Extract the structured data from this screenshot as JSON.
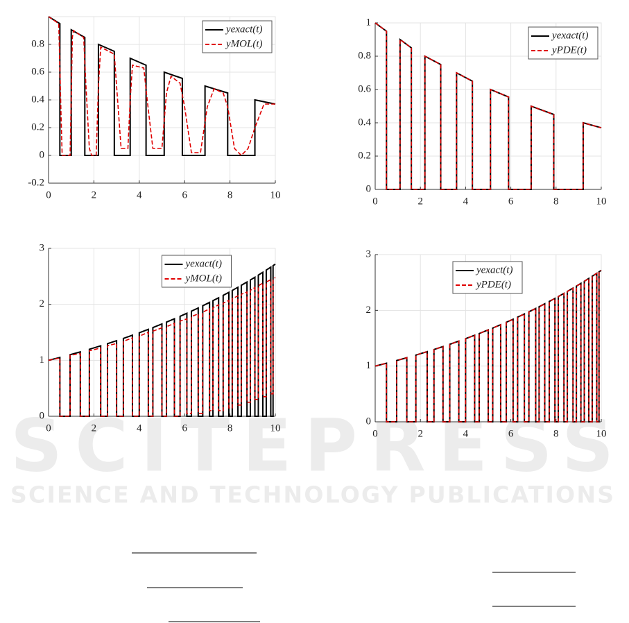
{
  "watermark": {
    "title": "SCITEPRESS",
    "subtitle": "SCIENCE AND TECHNOLOGY PUBLICATIONS"
  },
  "chart_data": [
    {
      "type": "line",
      "xlim": [
        0,
        10
      ],
      "xticks": [
        0,
        2,
        4,
        6,
        8,
        10
      ],
      "ylim": [
        -0.2,
        1
      ],
      "yticks": [
        -0.2,
        0,
        0.2,
        0.4,
        0.6,
        0.8
      ],
      "grid": true,
      "legend": "upper right",
      "x": [
        0,
        0.5,
        0.5,
        1,
        1,
        1.6,
        1.6,
        2.2,
        2.2,
        2.9,
        2.9,
        3.6,
        3.6,
        4.3,
        4.3,
        5.1,
        5.1,
        5.9,
        5.9,
        6.9,
        6.9,
        7.9,
        7.9,
        9.1,
        9.1,
        10
      ],
      "series": [
        {
          "name": "yexact(t)",
          "color": "#000000",
          "values": [
            1,
            0.95,
            0,
            0,
            0.905,
            0.85,
            0,
            0,
            0.8,
            0.75,
            0,
            0,
            0.7,
            0.65,
            0,
            0,
            0.6,
            0.555,
            0,
            0,
            0.5,
            0.45,
            0,
            0,
            0.4,
            0.37
          ]
        },
        {
          "name": "yMOL(t)",
          "color": "#e00000",
          "x": [
            0,
            0.45,
            0.55,
            0.6,
            0.95,
            1.05,
            1.1,
            1.55,
            1.65,
            1.8,
            1.9,
            2.1,
            2.2,
            2.3,
            2.9,
            3,
            3.2,
            3.5,
            3.6,
            3.7,
            4.2,
            4.35,
            4.6,
            5,
            5.2,
            5.4,
            5.8,
            6,
            6.3,
            6.7,
            7,
            7.3,
            7.7,
            7.9,
            8.2,
            8.5,
            8.8,
            9.1,
            9.5,
            10
          ],
          "values": [
            1,
            0.95,
            0.3,
            0,
            0,
            0.85,
            0.9,
            0.85,
            0.5,
            0.05,
            0,
            0,
            0.5,
            0.78,
            0.73,
            0.5,
            0.05,
            0.05,
            0.4,
            0.65,
            0.63,
            0.4,
            0.05,
            0.05,
            0.45,
            0.57,
            0.52,
            0.35,
            0.02,
            0.02,
            0.35,
            0.48,
            0.45,
            0.35,
            0.05,
            0,
            0.05,
            0.2,
            0.37,
            0.37
          ]
        }
      ]
    },
    {
      "type": "line",
      "xlim": [
        0,
        10
      ],
      "xticks": [
        0,
        2,
        4,
        6,
        8,
        10
      ],
      "ylim": [
        0,
        1
      ],
      "yticks": [
        0,
        0.2,
        0.4,
        0.6,
        0.8,
        1
      ],
      "grid": true,
      "legend": "upper right",
      "x": [
        0,
        0.5,
        0.5,
        1.1,
        1.1,
        1.6,
        1.6,
        2.2,
        2.2,
        2.9,
        2.9,
        3.6,
        3.6,
        4.3,
        4.3,
        5.1,
        5.1,
        5.9,
        5.9,
        6.9,
        6.9,
        7.9,
        7.9,
        9.2,
        9.2,
        10
      ],
      "series": [
        {
          "name": "yexact(t)",
          "color": "#000000",
          "values": [
            1,
            0.95,
            0,
            0,
            0.9,
            0.85,
            0,
            0,
            0.8,
            0.75,
            0,
            0,
            0.7,
            0.65,
            0,
            0,
            0.6,
            0.555,
            0,
            0,
            0.5,
            0.45,
            0,
            0,
            0.4,
            0.37
          ]
        },
        {
          "name": "yPDE(t)",
          "color": "#e00000",
          "values": [
            1,
            0.95,
            0,
            0,
            0.9,
            0.85,
            0,
            0,
            0.8,
            0.75,
            0,
            0,
            0.7,
            0.65,
            0,
            0,
            0.6,
            0.555,
            0,
            0,
            0.5,
            0.45,
            0,
            0,
            0.4,
            0.37
          ]
        }
      ]
    },
    {
      "type": "line",
      "xlim": [
        0,
        10
      ],
      "xticks": [
        0,
        2,
        4,
        6,
        8,
        10
      ],
      "ylim": [
        0,
        3
      ],
      "yticks": [
        0,
        1,
        2,
        3
      ],
      "grid": true,
      "legend": "upper center",
      "x": [
        0,
        0.5,
        0.5,
        0.95,
        0.95,
        1.4,
        1.4,
        1.8,
        1.8,
        2.3,
        2.3,
        2.6,
        2.6,
        3,
        3,
        3.3,
        3.3,
        3.7,
        3.7,
        4,
        4,
        4.4,
        4.4,
        4.6,
        4.6,
        5,
        5,
        5.2,
        5.2,
        5.55,
        5.55,
        5.8,
        5.8,
        6.1,
        6.1,
        6.3,
        6.3,
        6.6,
        6.6,
        6.8,
        6.8,
        7.1,
        7.1,
        7.25,
        7.25,
        7.5,
        7.5,
        7.7,
        7.7,
        7.95,
        7.95,
        8.1,
        8.1,
        8.35,
        8.35,
        8.5,
        8.5,
        8.75,
        8.75,
        8.9,
        8.9,
        9.1,
        9.1,
        9.25,
        9.25,
        9.45,
        9.45,
        9.6,
        9.6,
        9.8,
        9.8,
        9.9,
        9.9,
        10
      ],
      "series": [
        {
          "name": "yexact(t)",
          "color": "#000000",
          "values": [
            1,
            1.051,
            0,
            0,
            1.1,
            1.15,
            0,
            0,
            1.197,
            1.259,
            0,
            0,
            1.297,
            1.35,
            0,
            0,
            1.391,
            1.448,
            0,
            0,
            1.492,
            1.553,
            0,
            0,
            1.584,
            1.649,
            0,
            0,
            1.682,
            1.742,
            0,
            0,
            1.786,
            1.84,
            0,
            0,
            1.878,
            1.935,
            0,
            0,
            1.974,
            2.034,
            0,
            0,
            2.065,
            2.117,
            0,
            0,
            2.16,
            2.214,
            0,
            0,
            2.248,
            2.305,
            0,
            0,
            2.34,
            2.399,
            0,
            0,
            2.435,
            2.484,
            0,
            0,
            2.522,
            2.573,
            0,
            0,
            2.612,
            2.664,
            0,
            0,
            2.691,
            2.718
          ]
        },
        {
          "name": "yMOL(t)",
          "color": "#e00000",
          "values": [
            1,
            1.04,
            0,
            0,
            1.09,
            1.12,
            0,
            0,
            1.17,
            1.22,
            0,
            0,
            1.26,
            1.3,
            0,
            0,
            1.34,
            1.4,
            0,
            0,
            1.43,
            1.5,
            0,
            0,
            1.52,
            1.58,
            0,
            0,
            1.6,
            1.66,
            0,
            0,
            1.7,
            1.74,
            0.05,
            0.05,
            1.78,
            1.83,
            0.05,
            0.05,
            1.86,
            1.92,
            0.1,
            0.1,
            1.94,
            1.99,
            0.1,
            0.1,
            2.02,
            2.07,
            0.15,
            0.15,
            2.1,
            2.15,
            0.2,
            0.2,
            2.18,
            2.22,
            0.25,
            0.25,
            2.25,
            2.3,
            0.3,
            0.3,
            2.33,
            2.38,
            0.35,
            0.35,
            2.4,
            2.44,
            0.4,
            0.4,
            2.45,
            2.48
          ]
        }
      ]
    },
    {
      "type": "line",
      "xlim": [
        0,
        10
      ],
      "xticks": [
        0,
        2,
        4,
        6,
        8,
        10
      ],
      "ylim": [
        0,
        3
      ],
      "yticks": [
        0,
        1,
        2,
        3
      ],
      "grid": true,
      "legend": "upper left",
      "x": [
        0,
        0.5,
        0.5,
        0.95,
        0.95,
        1.4,
        1.4,
        1.8,
        1.8,
        2.3,
        2.3,
        2.6,
        2.6,
        3,
        3,
        3.3,
        3.3,
        3.7,
        3.7,
        4,
        4,
        4.4,
        4.4,
        4.6,
        4.6,
        5,
        5,
        5.2,
        5.2,
        5.55,
        5.55,
        5.8,
        5.8,
        6.1,
        6.1,
        6.3,
        6.3,
        6.6,
        6.6,
        6.8,
        6.8,
        7.1,
        7.1,
        7.25,
        7.25,
        7.5,
        7.5,
        7.7,
        7.7,
        7.95,
        7.95,
        8.1,
        8.1,
        8.35,
        8.35,
        8.5,
        8.5,
        8.75,
        8.75,
        8.9,
        8.9,
        9.1,
        9.1,
        9.25,
        9.25,
        9.45,
        9.45,
        9.6,
        9.6,
        9.8,
        9.8,
        9.9,
        9.9,
        10
      ],
      "series": [
        {
          "name": "yexact(t)",
          "color": "#000000",
          "values": [
            1,
            1.051,
            0,
            0,
            1.1,
            1.15,
            0,
            0,
            1.197,
            1.259,
            0,
            0,
            1.297,
            1.35,
            0,
            0,
            1.391,
            1.448,
            0,
            0,
            1.492,
            1.553,
            0,
            0,
            1.584,
            1.649,
            0,
            0,
            1.682,
            1.742,
            0,
            0,
            1.786,
            1.84,
            0,
            0,
            1.878,
            1.935,
            0,
            0,
            1.974,
            2.034,
            0,
            0,
            2.065,
            2.117,
            0,
            0,
            2.16,
            2.214,
            0,
            0,
            2.248,
            2.305,
            0,
            0,
            2.34,
            2.399,
            0,
            0,
            2.435,
            2.484,
            0,
            0,
            2.522,
            2.573,
            0,
            0,
            2.612,
            2.664,
            0,
            0,
            2.691,
            2.718
          ]
        },
        {
          "name": "yPDE(t)",
          "color": "#e00000",
          "values": [
            1,
            1.051,
            0,
            0,
            1.1,
            1.15,
            0,
            0,
            1.197,
            1.259,
            0,
            0,
            1.297,
            1.35,
            0,
            0,
            1.391,
            1.448,
            0,
            0,
            1.492,
            1.553,
            0,
            0,
            1.584,
            1.649,
            0,
            0,
            1.682,
            1.742,
            0,
            0,
            1.786,
            1.84,
            0,
            0,
            1.878,
            1.935,
            0,
            0,
            1.974,
            2.034,
            0,
            0,
            2.065,
            2.117,
            0,
            0,
            2.16,
            2.214,
            0,
            0,
            2.248,
            2.305,
            0,
            0,
            2.34,
            2.399,
            0,
            0,
            2.435,
            2.484,
            0,
            0,
            2.522,
            2.573,
            0,
            0,
            2.612,
            2.664,
            0,
            0,
            2.691,
            2.718
          ]
        }
      ]
    }
  ]
}
